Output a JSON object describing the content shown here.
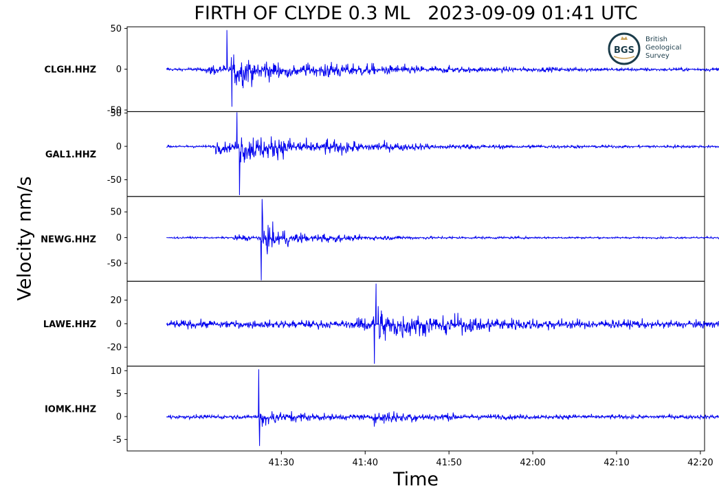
{
  "title": "FIRTH OF CLYDE 0.3 ML   2023-09-09 01:41 UTC",
  "ylabel": "Velocity nm/s",
  "xlabel": "Time",
  "logo": {
    "abbr": "BGS",
    "lines": [
      "British",
      "Geological",
      "Survey"
    ],
    "colors": {
      "ring": "#1b3c4a",
      "text": "#1b3c4a",
      "accent": "#c9a35c"
    }
  },
  "colors": {
    "trace": "#0000ee",
    "axis": "#000000"
  },
  "chart_data": {
    "type": "line",
    "x_ticks": [
      "41:30",
      "41:40",
      "41:50",
      "42:00",
      "42:10",
      "42:20"
    ],
    "x_tick_seconds": [
      90,
      100,
      110,
      120,
      130,
      140
    ],
    "xlim_seconds": [
      71.6,
      140.5
    ],
    "data_range_seconds": [
      76.3,
      146.2
    ],
    "panels": [
      {
        "station": "CLGH.HHZ",
        "yticks": [
          50,
          0,
          -50
        ],
        "ylim": [
          -52,
          52
        ],
        "peak_positive": 48,
        "peak_negative": -46
      },
      {
        "station": "GAL1.HHZ",
        "yticks": [
          50,
          0,
          -50
        ],
        "ylim": [
          -75,
          52
        ],
        "peak_positive": 51,
        "peak_negative": -73
      },
      {
        "station": "NEWG.HHZ",
        "yticks": [
          50,
          0,
          -50
        ],
        "ylim": [
          -85,
          80
        ],
        "peak_positive": 75,
        "peak_negative": -83
      },
      {
        "station": "LAWE.HHZ",
        "yticks": [
          20,
          0,
          -20
        ],
        "ylim": [
          -36,
          36
        ],
        "peak_positive": 34,
        "peak_negative": -34
      },
      {
        "station": "IOMK.HHZ",
        "yticks": [
          10,
          5,
          0,
          -5
        ],
        "ylim": [
          -7.5,
          11
        ],
        "peak_positive": 10.3,
        "peak_negative": -6.4
      }
    ]
  }
}
